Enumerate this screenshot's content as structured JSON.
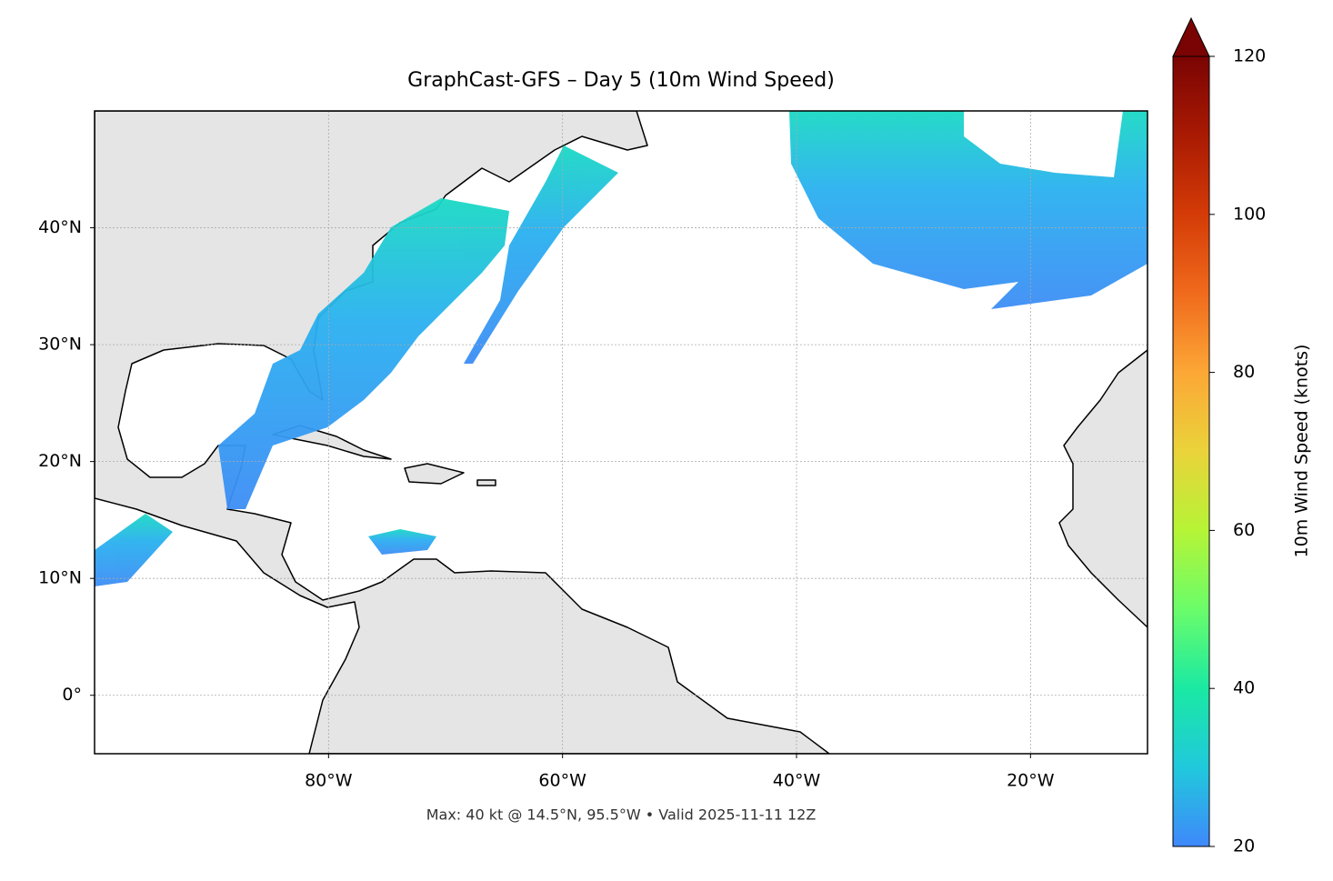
{
  "title": "GraphCast-GFS – Day 5 (10m Wind Speed)",
  "map": {
    "lon_range": [
      -100,
      -10
    ],
    "lat_range": [
      -5,
      50
    ],
    "lat_ticks": [
      {
        "value": 0,
        "label": "0°"
      },
      {
        "value": 10,
        "label": "10°N"
      },
      {
        "value": 20,
        "label": "20°N"
      },
      {
        "value": 30,
        "label": "30°N"
      },
      {
        "value": 40,
        "label": "40°N"
      }
    ],
    "lon_ticks": [
      {
        "value": -80,
        "label": "80°W"
      },
      {
        "value": -60,
        "label": "60°W"
      },
      {
        "value": -40,
        "label": "40°W"
      },
      {
        "value": -20,
        "label": "20°W"
      }
    ],
    "grid": true
  },
  "colorbar": {
    "label": "10m Wind Speed (knots)",
    "range": [
      20,
      120
    ],
    "ticks": [
      20,
      40,
      60,
      80,
      100,
      120
    ],
    "extend": "max"
  },
  "footer": "Max: 40 kt @ 14.5°N, 95.5°W • Valid 2025-11-11 12Z"
}
